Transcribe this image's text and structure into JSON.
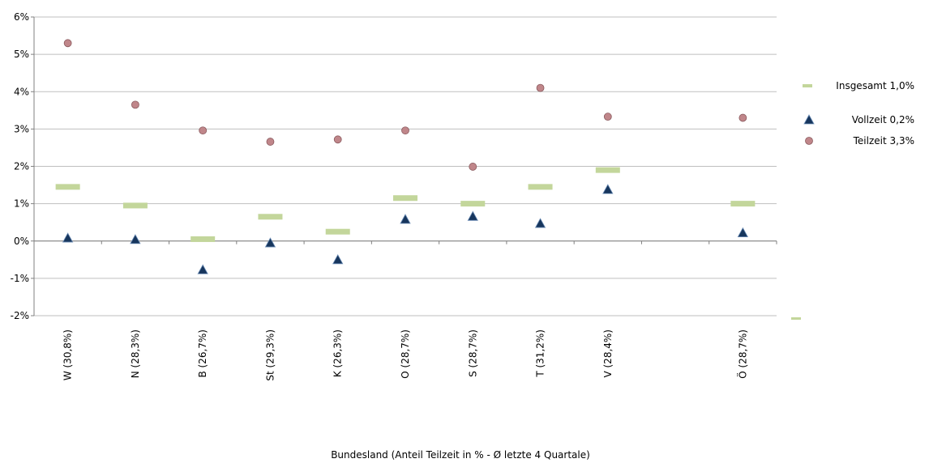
{
  "chart_data": {
    "type": "scatter",
    "title": "",
    "xlabel": "Bundesland (Anteil Teilzeit in % - Ø letzte 4 Quartale)",
    "ylabel": "",
    "ylim": [
      -2,
      6
    ],
    "ytick_labels": [
      "-2%",
      "-1%",
      "0%",
      "1%",
      "2%",
      "3%",
      "4%",
      "5%",
      "6%"
    ],
    "grid": "horizontal",
    "legend_position": "right",
    "categories": [
      "W (30,8%)",
      "N (28,3%)",
      "B (26,7%)",
      "St (29,3%)",
      "K (26,3%)",
      "O (28,7%)",
      "S (28,7%)",
      "T (31,2%)",
      "V (28,4%)",
      "",
      "Ö (28,7%)"
    ],
    "series": [
      {
        "name": "Insgesamt 1,0%",
        "marker": "dash",
        "color": "#c3d69b",
        "values": [
          1.45,
          0.95,
          0.05,
          0.65,
          0.25,
          1.15,
          1.0,
          1.45,
          1.9,
          null,
          1.0
        ]
      },
      {
        "name": "Vollzeit 0,2%",
        "marker": "triangle",
        "color": "#17365d",
        "values": [
          0.08,
          0.04,
          -0.77,
          -0.05,
          -0.5,
          0.58,
          0.66,
          0.47,
          1.38,
          null,
          0.22
        ]
      },
      {
        "name": "Teilzeit 3,3%",
        "marker": "circle",
        "color": "#c0868a",
        "values": [
          5.3,
          3.65,
          2.96,
          2.66,
          2.72,
          2.96,
          1.99,
          4.1,
          3.33,
          null,
          3.3
        ]
      }
    ]
  }
}
